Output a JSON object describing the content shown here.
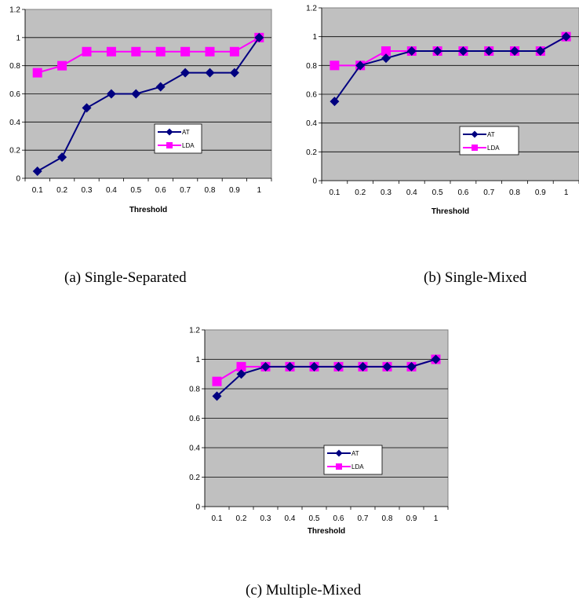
{
  "colors": {
    "at": "#000080",
    "lda": "#ff00ff",
    "plot_background": "#c0c0c0"
  },
  "captions": {
    "a": "(a) Single-Separated",
    "b": "(b) Single-Mixed",
    "c": "(c) Multiple-Mixed"
  },
  "chart_data": [
    {
      "type": "line",
      "categories": [
        "0.1",
        "0.2",
        "0.3",
        "0.4",
        "0.5",
        "0.6",
        "0.7",
        "0.8",
        "0.9",
        "1"
      ],
      "series": [
        {
          "name": "AT",
          "values": [
            0.05,
            0.15,
            0.5,
            0.6,
            0.6,
            0.65,
            0.75,
            0.75,
            0.75,
            1.0
          ],
          "marker": "diamond"
        },
        {
          "name": "LDA",
          "values": [
            0.75,
            0.8,
            0.9,
            0.9,
            0.9,
            0.9,
            0.9,
            0.9,
            0.9,
            1.0
          ],
          "marker": "square"
        }
      ],
      "xlabel": "Threshold",
      "ylabel": "",
      "ylim": [
        0,
        1.2
      ],
      "yticks": [
        "0",
        "0.2",
        "0.4",
        "0.6",
        "0.8",
        "1",
        "1.2"
      ],
      "grid": "horizontal",
      "legend": "center-right"
    },
    {
      "type": "line",
      "categories": [
        "0.1",
        "0.2",
        "0.3",
        "0.4",
        "0.5",
        "0.6",
        "0.7",
        "0.8",
        "0.9",
        "1"
      ],
      "series": [
        {
          "name": "AT",
          "values": [
            0.55,
            0.8,
            0.85,
            0.9,
            0.9,
            0.9,
            0.9,
            0.9,
            0.9,
            1.0
          ],
          "marker": "diamond"
        },
        {
          "name": "LDA",
          "values": [
            0.8,
            0.8,
            0.9,
            0.9,
            0.9,
            0.9,
            0.9,
            0.9,
            0.9,
            1.0
          ],
          "marker": "square"
        }
      ],
      "xlabel": "Threshold",
      "ylabel": "",
      "ylim": [
        0,
        1.2
      ],
      "yticks": [
        "0",
        "0.2",
        "0.4",
        "0.6",
        "0.8",
        "1",
        "1.2"
      ],
      "grid": "horizontal",
      "legend": "center-right"
    },
    {
      "type": "line",
      "categories": [
        "0.1",
        "0.2",
        "0.3",
        "0.4",
        "0.5",
        "0.6",
        "0.7",
        "0.8",
        "0.9",
        "1"
      ],
      "series": [
        {
          "name": "AT",
          "values": [
            0.75,
            0.9,
            0.95,
            0.95,
            0.95,
            0.95,
            0.95,
            0.95,
            0.95,
            1.0
          ],
          "marker": "diamond"
        },
        {
          "name": "LDA",
          "values": [
            0.85,
            0.95,
            0.95,
            0.95,
            0.95,
            0.95,
            0.95,
            0.95,
            0.95,
            1.0
          ],
          "marker": "square"
        }
      ],
      "xlabel": "Threshold",
      "ylabel": "",
      "ylim": [
        0,
        1.2
      ],
      "yticks": [
        "0",
        "0.2",
        "0.4",
        "0.6",
        "0.8",
        "1",
        "1.2"
      ],
      "grid": "horizontal",
      "legend": "center-right"
    }
  ]
}
